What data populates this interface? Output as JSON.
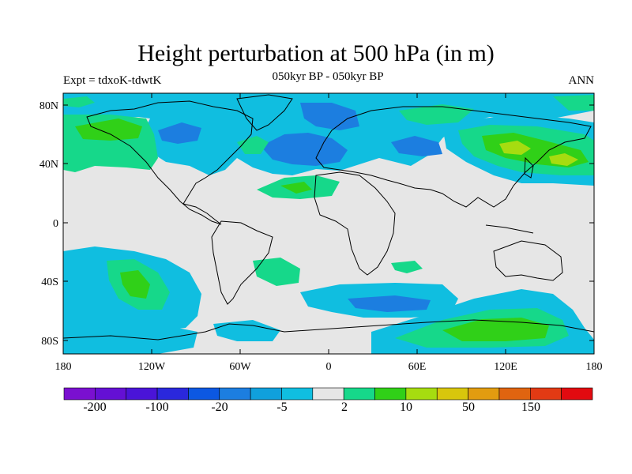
{
  "header": {
    "title": "Height perturbation at 500 hPa (in m)",
    "subtitle": "050kyr BP - 050kyr BP",
    "left_label": "Expt = tdxoK-tdwtK",
    "right_label": "ANN"
  },
  "axes": {
    "lat_ticks": [
      "80N",
      "40N",
      "0",
      "40S",
      "80S"
    ],
    "lon_ticks": [
      "180",
      "120W",
      "60W",
      "0",
      "60E",
      "120E",
      "180"
    ]
  },
  "colorbar": {
    "colors": [
      "#7a10d0",
      "#6410d4",
      "#4a14d8",
      "#2a28dc",
      "#0c58e2",
      "#1c7ee0",
      "#10a0dc",
      "#10bee0",
      "#e6e6e6",
      "#16d88a",
      "#30d018",
      "#a6dc10",
      "#d8c60c",
      "#e29c10",
      "#e06410",
      "#e23a14",
      "#e20a10"
    ],
    "labels": [
      "-200",
      "-100",
      "-20",
      "-5",
      "2",
      "10",
      "50",
      "150"
    ]
  },
  "fields": {
    "colors": {
      "blue_light": "#10bee0",
      "blue_mid": "#1c7ee0",
      "green_light": "#16d88a",
      "green_mid": "#30d018",
      "green_yellow": "#a6dc10",
      "background": "#e6e6e6"
    }
  }
}
